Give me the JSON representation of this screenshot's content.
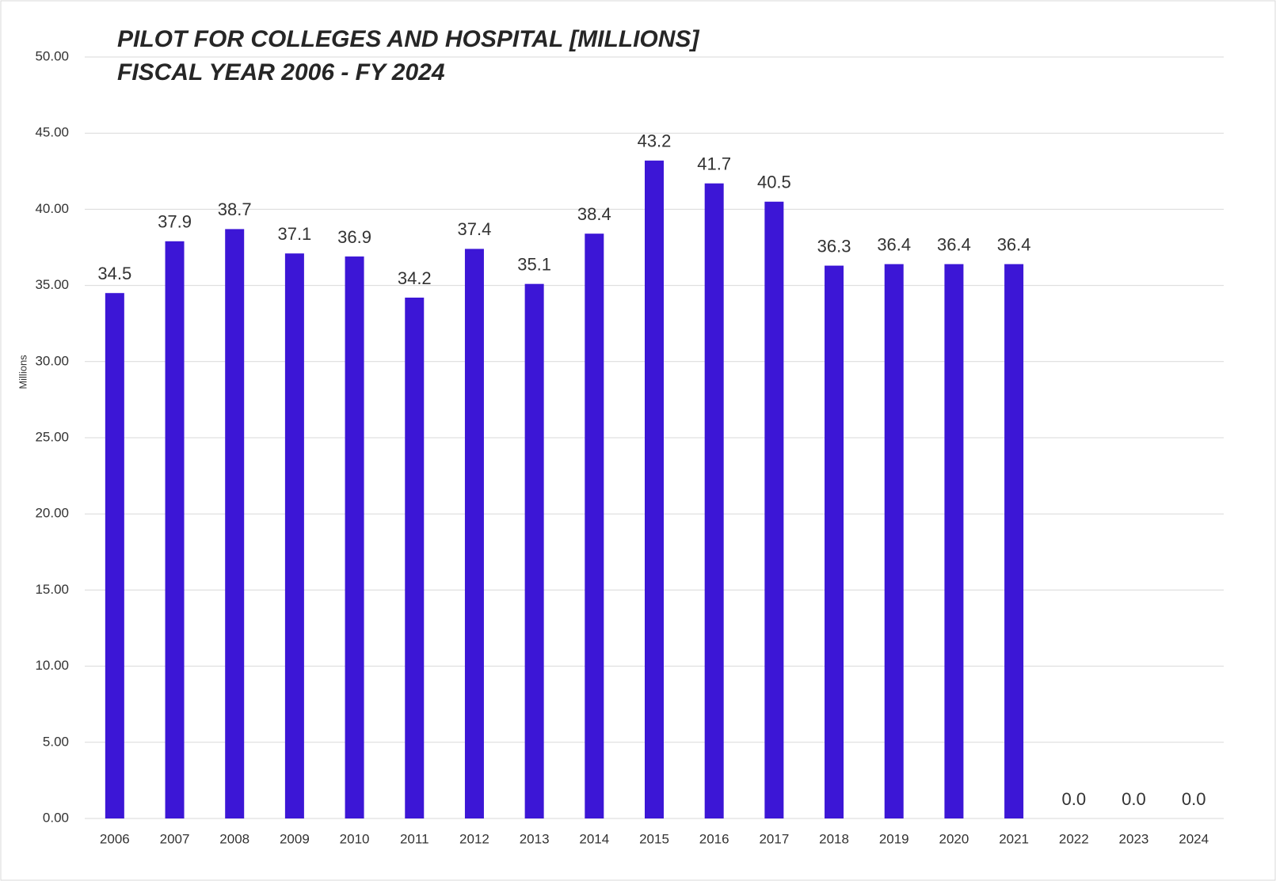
{
  "chart_data": {
    "type": "bar",
    "title": "PILOT FOR COLLEGES AND HOSPITAL [MILLIONS]",
    "subtitle": "FISCAL YEAR 2006 - FY 2024",
    "y_label": "Millions",
    "categories": [
      "2006",
      "2007",
      "2008",
      "2009",
      "2010",
      "2011",
      "2012",
      "2013",
      "2014",
      "2015",
      "2016",
      "2017",
      "2018",
      "2019",
      "2020",
      "2021",
      "2022",
      "2023",
      "2024"
    ],
    "values": [
      34.5,
      37.9,
      38.7,
      37.1,
      36.9,
      34.2,
      37.4,
      35.1,
      38.4,
      43.2,
      41.7,
      40.5,
      36.3,
      36.4,
      36.4,
      36.4,
      0,
      0,
      0
    ],
    "value_labels": [
      "34.5",
      "37.9",
      "38.7",
      "37.1",
      "36.9",
      "34.2",
      "37.4",
      "35.1",
      "38.4",
      "43.2",
      "41.7",
      "40.5",
      "36.3",
      "36.4",
      "36.4",
      "36.4",
      "0.0",
      "0.0",
      "0.0"
    ],
    "color": "#3c16d6",
    "ylim": [
      0,
      50
    ],
    "yticks": [
      {
        "value": 0,
        "label": "0.00"
      },
      {
        "value": 5,
        "label": "5.00"
      },
      {
        "value": 10,
        "label": "10.00"
      },
      {
        "value": 15,
        "label": "15.00"
      },
      {
        "value": 20,
        "label": "20.00"
      },
      {
        "value": 25,
        "label": "25.00"
      },
      {
        "value": 30,
        "label": "30.00"
      },
      {
        "value": 35,
        "label": "35.00"
      },
      {
        "value": 40,
        "label": "40.00"
      },
      {
        "value": 45,
        "label": "45.00"
      },
      {
        "value": 50,
        "label": "50.00"
      }
    ],
    "grid": true
  }
}
